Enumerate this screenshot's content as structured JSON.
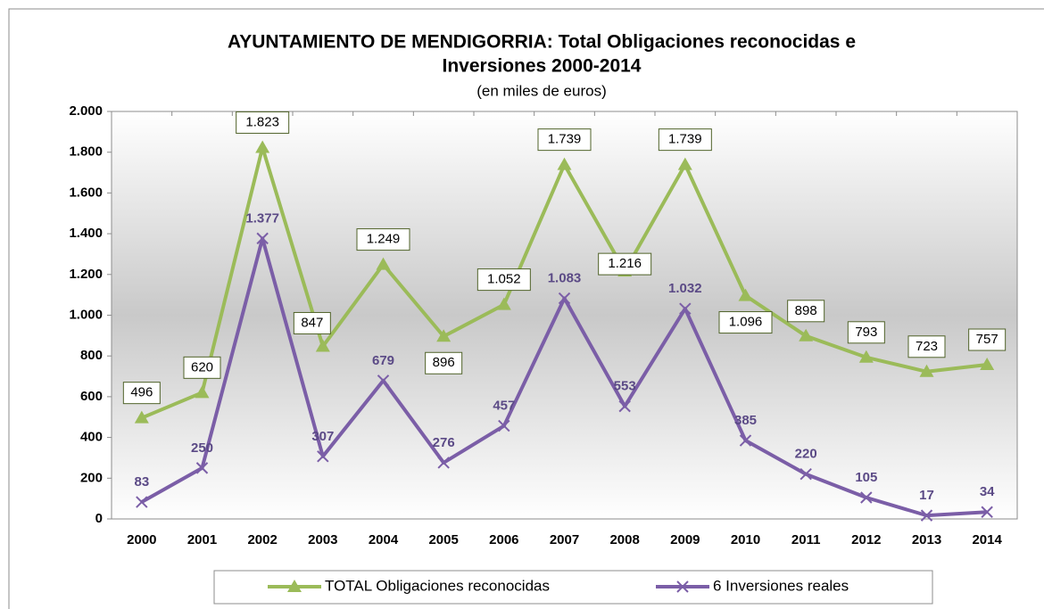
{
  "chart_data": {
    "type": "line",
    "title": [
      "AYUNTAMIENTO DE MENDIGORRIA:  Total Obligaciones reconocidas e",
      "Inversiones  2000-2014"
    ],
    "subtitle": "(en miles de euros)",
    "categories": [
      "2000",
      "2001",
      "2002",
      "2003",
      "2004",
      "2005",
      "2006",
      "2007",
      "2008",
      "2009",
      "2010",
      "2011",
      "2012",
      "2013",
      "2014"
    ],
    "series": [
      {
        "name": "TOTAL Obligaciones reconocidas",
        "color": "#9bbb59",
        "marker": "triangle",
        "values": [
          496,
          620,
          1823,
          847,
          1249,
          896,
          1052,
          1739,
          1216,
          1739,
          1096,
          898,
          793,
          723,
          757
        ],
        "value_labels": [
          "496",
          "620",
          "1.823",
          "847",
          "1.249",
          "896",
          "1.052",
          "1.739",
          "1.216",
          "1.739",
          "1.096",
          "898",
          "793",
          "723",
          "757"
        ]
      },
      {
        "name": "6  Inversiones reales",
        "color": "#7b5ea7",
        "marker": "x",
        "values": [
          83,
          250,
          1377,
          307,
          679,
          276,
          457,
          1083,
          553,
          1032,
          385,
          220,
          105,
          17,
          34
        ],
        "value_labels": [
          "83",
          "250",
          "1.377",
          "307",
          "679",
          "276",
          "457",
          "1.083",
          "553",
          "1.032",
          "385",
          "220",
          "105",
          "17",
          "34"
        ]
      }
    ],
    "ylim": [
      0,
      2000
    ],
    "yticks": [
      0,
      200,
      400,
      600,
      800,
      {
        "value": 1000,
        "label": "1.000"
      },
      {
        "value": 1200,
        "label": "1.200"
      },
      {
        "value": 1400,
        "label": "1.400"
      },
      {
        "value": 1600,
        "label": "1.600"
      },
      {
        "value": 1800,
        "label": "1.800"
      },
      {
        "value": 2000,
        "label": "2.000"
      }
    ],
    "grid": false,
    "legend": "bottom"
  }
}
